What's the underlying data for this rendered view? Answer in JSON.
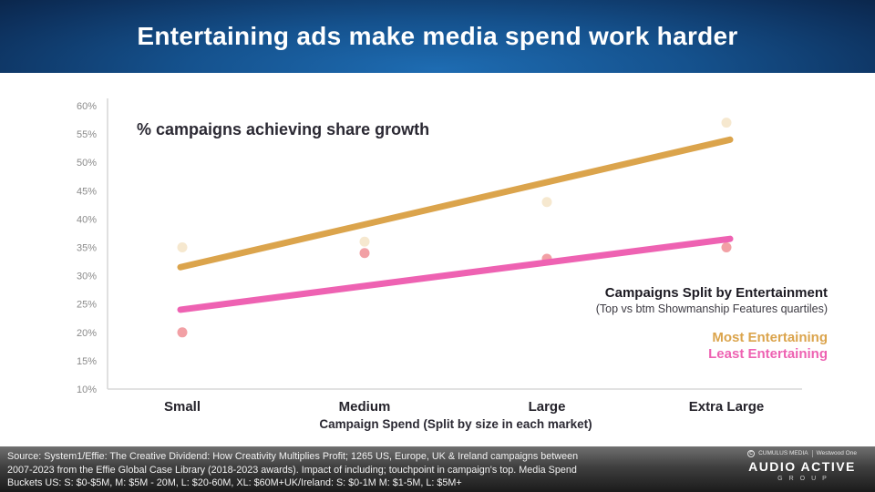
{
  "header": {
    "title": "Entertaining ads make media spend work harder"
  },
  "chart_data": {
    "type": "scatter",
    "title": "% campaigns achieving share growth",
    "categories": [
      "Small",
      "Medium",
      "Large",
      "Extra Large"
    ],
    "xlabel": "Campaign Spend (Split by size in each market)",
    "ylim": [
      10,
      60
    ],
    "ytick_step": 5,
    "ytick_suffix": "%",
    "grid": false,
    "legend_position": "right",
    "series": [
      {
        "name": "Most Entertaining",
        "color": "#DBA44C",
        "point_color": "#F6E8CF",
        "points": [
          35,
          36,
          43,
          57
        ],
        "trend": [
          31.5,
          54
        ]
      },
      {
        "name": "Least Entertaining",
        "color": "#EE62B2",
        "point_color": "#F2A0A5",
        "points": [
          20,
          34,
          33,
          35
        ],
        "trend": [
          24,
          36.5
        ]
      }
    ],
    "legend": {
      "title": "Campaigns Split by Entertainment",
      "subtitle": "(Top vs btm Showmanship Features quartiles)"
    }
  },
  "footer": {
    "line1": "Source: System1/Effie: The Creative Dividend: How Creativity Multiplies Profit; 1265 US, Europe, UK & Ireland campaigns between",
    "line2": "2007-2023 from the Effie Global Case Library (2018-2023 awards). Impact of including; touchpoint in campaign's top. Media Spend",
    "line3": "Buckets US: S: $0-$5M, M: $5M - 20M, L: $20-60M, XL: $60M+UK/Ireland: S: $0-1M M: $1-5M, L: $5M+",
    "logo": {
      "brand1": "CUMULUS MEDIA",
      "brand2": "Westwood One",
      "name": "AUDIO ACTIVE",
      "sub": "GROUP"
    }
  }
}
